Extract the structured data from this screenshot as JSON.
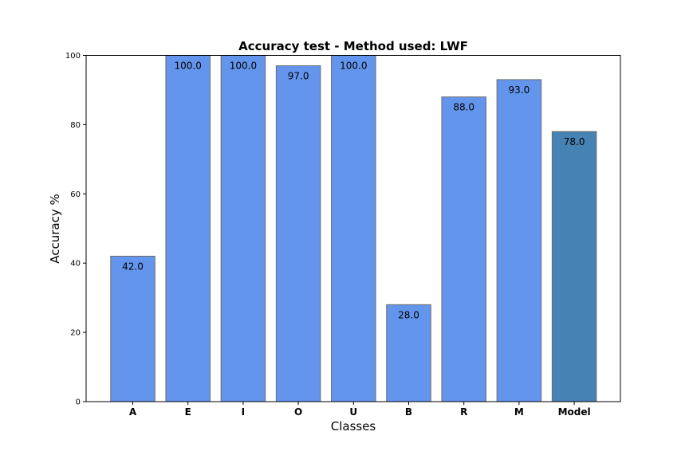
{
  "chart_data": {
    "type": "bar",
    "title": "Accuracy test - Method used: LWF",
    "xlabel": "Classes",
    "ylabel": "Accuracy %",
    "ylim": [
      0,
      100
    ],
    "yticks": [
      0,
      20,
      40,
      60,
      80,
      100
    ],
    "grid": false,
    "categories": [
      "A",
      "E",
      "I",
      "O",
      "U",
      "B",
      "R",
      "M",
      "Model"
    ],
    "values": [
      42,
      100,
      100,
      97,
      100,
      28,
      88,
      93,
      78
    ],
    "data_labels": [
      "42.0",
      "100.0",
      "100.0",
      "97.0",
      "100.0",
      "28.0",
      "88.0",
      "93.0",
      "78.0"
    ],
    "colors": {
      "class_bar": "#6495ED",
      "model_bar": "#4682B4",
      "bar_edge": "#6b6b6b"
    }
  }
}
